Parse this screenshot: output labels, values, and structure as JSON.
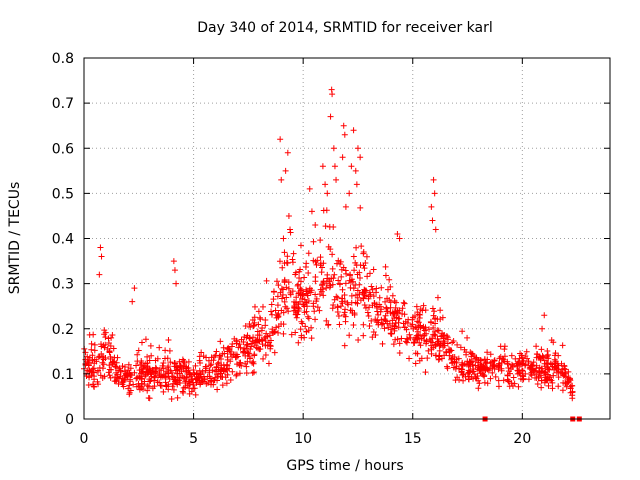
{
  "chart_data": {
    "type": "scatter",
    "title": "Day 340 of 2014, SRMTID for receiver karl",
    "xlabel": "GPS time / hours",
    "ylabel": "SRMTID / TECUs",
    "xlim": [
      0,
      24
    ],
    "ylim": [
      0,
      0.8
    ],
    "x_ticks": [
      0,
      5,
      10,
      15,
      20
    ],
    "x_tick_labels": [
      "0",
      "5",
      "10",
      "15",
      "20"
    ],
    "y_ticks": [
      0,
      0.1,
      0.2,
      0.3,
      0.4,
      0.5,
      0.6,
      0.7,
      0.8
    ],
    "y_tick_labels": [
      "0",
      "0.1",
      "0.2",
      "0.3",
      "0.4",
      "0.5",
      "0.6",
      "0.7",
      "0.8"
    ],
    "grid": true,
    "marker": "plus",
    "color": "#ff0000",
    "envelope": {
      "description": "approximate trend of the dense point cloud (hours, TECU)",
      "x": [
        0,
        0.5,
        1,
        1.5,
        2,
        3,
        4,
        5,
        6,
        7,
        8,
        8.5,
        9,
        9.5,
        10,
        10.5,
        11,
        11.5,
        12,
        12.5,
        13,
        13.5,
        14,
        14.5,
        15,
        15.5,
        16,
        16.5,
        17,
        18,
        19,
        20,
        21,
        21.5,
        22,
        22.3
      ],
      "center": [
        0.13,
        0.11,
        0.15,
        0.1,
        0.09,
        0.1,
        0.1,
        0.09,
        0.11,
        0.14,
        0.17,
        0.2,
        0.27,
        0.3,
        0.24,
        0.28,
        0.31,
        0.3,
        0.26,
        0.28,
        0.26,
        0.24,
        0.22,
        0.2,
        0.2,
        0.18,
        0.19,
        0.16,
        0.12,
        0.11,
        0.11,
        0.11,
        0.11,
        0.12,
        0.09,
        0.06
      ],
      "spread": [
        0.06,
        0.05,
        0.07,
        0.04,
        0.04,
        0.05,
        0.05,
        0.04,
        0.04,
        0.05,
        0.06,
        0.07,
        0.09,
        0.1,
        0.08,
        0.1,
        0.12,
        0.12,
        0.09,
        0.1,
        0.08,
        0.07,
        0.06,
        0.06,
        0.06,
        0.06,
        0.07,
        0.05,
        0.04,
        0.04,
        0.04,
        0.04,
        0.04,
        0.05,
        0.03,
        0.02
      ]
    },
    "outliers": [
      {
        "x": 0.75,
        "y": 0.38
      },
      {
        "x": 0.8,
        "y": 0.36
      },
      {
        "x": 0.7,
        "y": 0.32
      },
      {
        "x": 2.3,
        "y": 0.29
      },
      {
        "x": 2.2,
        "y": 0.26
      },
      {
        "x": 4.1,
        "y": 0.35
      },
      {
        "x": 4.15,
        "y": 0.33
      },
      {
        "x": 4.2,
        "y": 0.3
      },
      {
        "x": 8.95,
        "y": 0.62
      },
      {
        "x": 9.3,
        "y": 0.59
      },
      {
        "x": 9.2,
        "y": 0.55
      },
      {
        "x": 9.0,
        "y": 0.53
      },
      {
        "x": 9.35,
        "y": 0.45
      },
      {
        "x": 9.4,
        "y": 0.42
      },
      {
        "x": 9.1,
        "y": 0.4
      },
      {
        "x": 10.3,
        "y": 0.51
      },
      {
        "x": 10.4,
        "y": 0.46
      },
      {
        "x": 10.55,
        "y": 0.43
      },
      {
        "x": 10.9,
        "y": 0.56
      },
      {
        "x": 11.0,
        "y": 0.52
      },
      {
        "x": 11.1,
        "y": 0.5
      },
      {
        "x": 11.3,
        "y": 0.73
      },
      {
        "x": 11.32,
        "y": 0.72
      },
      {
        "x": 11.25,
        "y": 0.67
      },
      {
        "x": 11.4,
        "y": 0.6
      },
      {
        "x": 11.45,
        "y": 0.56
      },
      {
        "x": 11.5,
        "y": 0.53
      },
      {
        "x": 11.85,
        "y": 0.65
      },
      {
        "x": 11.9,
        "y": 0.63
      },
      {
        "x": 11.8,
        "y": 0.58
      },
      {
        "x": 12.2,
        "y": 0.56
      },
      {
        "x": 12.1,
        "y": 0.5
      },
      {
        "x": 11.95,
        "y": 0.47
      },
      {
        "x": 12.3,
        "y": 0.64
      },
      {
        "x": 12.5,
        "y": 0.6
      },
      {
        "x": 12.6,
        "y": 0.58
      },
      {
        "x": 12.4,
        "y": 0.55
      },
      {
        "x": 12.45,
        "y": 0.52
      },
      {
        "x": 14.3,
        "y": 0.41
      },
      {
        "x": 14.4,
        "y": 0.4
      },
      {
        "x": 15.95,
        "y": 0.53
      },
      {
        "x": 16.0,
        "y": 0.5
      },
      {
        "x": 15.85,
        "y": 0.47
      },
      {
        "x": 15.9,
        "y": 0.44
      },
      {
        "x": 16.05,
        "y": 0.42
      },
      {
        "x": 21.0,
        "y": 0.23
      },
      {
        "x": 20.9,
        "y": 0.2
      }
    ],
    "zero_markers": [
      {
        "x": 22.3,
        "y": 0
      },
      {
        "x": 22.6,
        "y": 0
      },
      {
        "x": 18.3,
        "y": 0
      }
    ]
  }
}
